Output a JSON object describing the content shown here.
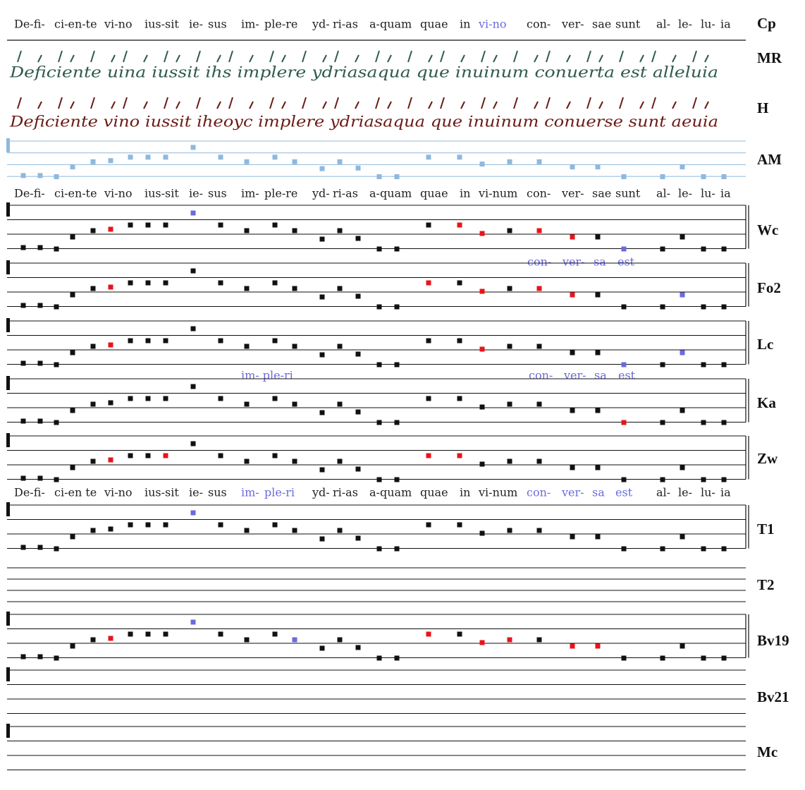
{
  "lyric_lines": [
    {
      "syllables": [
        {
          "text": "De-fi-"
        },
        {
          "text": "ci-en-te"
        },
        {
          "text": "vi-no"
        },
        {
          "text": "ius-sit"
        },
        {
          "text": "ie-"
        },
        {
          "text": "sus"
        },
        {
          "text": "im-"
        },
        {
          "text": "ple-re"
        },
        {
          "text": "yd-"
        },
        {
          "text": "ri-as"
        },
        {
          "text": "a-quam"
        },
        {
          "text": "quae"
        },
        {
          "text": "in"
        },
        {
          "text": "vi-no",
          "highlight": true
        },
        {
          "text": "con-"
        },
        {
          "text": "ver-"
        },
        {
          "text": "sae"
        },
        {
          "text": "sunt"
        },
        {
          "text": "al-"
        },
        {
          "text": "le-"
        },
        {
          "text": "lu-"
        },
        {
          "text": "ia"
        }
      ]
    },
    {
      "syllables": [
        {
          "text": "De-fi-"
        },
        {
          "text": "ci-en-te"
        },
        {
          "text": "vi-no"
        },
        {
          "text": "ius-sit"
        },
        {
          "text": "ie-"
        },
        {
          "text": "sus"
        },
        {
          "text": "im-"
        },
        {
          "text": "ple-re"
        },
        {
          "text": "yd-"
        },
        {
          "text": "ri-as"
        },
        {
          "text": "a-quam"
        },
        {
          "text": "quae"
        },
        {
          "text": "in"
        },
        {
          "text": "vi-num"
        },
        {
          "text": "con-"
        },
        {
          "text": "ver-"
        },
        {
          "text": "sae"
        },
        {
          "text": "sunt"
        },
        {
          "text": "al-"
        },
        {
          "text": "le-"
        },
        {
          "text": "lu-"
        },
        {
          "text": "ia"
        }
      ]
    },
    {
      "syllables": [
        {
          "text": "De-fi-"
        },
        {
          "text": "ci-en te"
        },
        {
          "text": "vi-no"
        },
        {
          "text": "ius-sit"
        },
        {
          "text": "ie-"
        },
        {
          "text": "sus"
        },
        {
          "text": "im-",
          "highlight": true
        },
        {
          "text": "ple-ri",
          "highlight": true
        },
        {
          "text": "yd-"
        },
        {
          "text": "ri-as"
        },
        {
          "text": "a-quam"
        },
        {
          "text": "quae"
        },
        {
          "text": "in"
        },
        {
          "text": "vi-num"
        },
        {
          "text": "con-",
          "highlight": true
        },
        {
          "text": "ver-",
          "highlight": true
        },
        {
          "text": "sa",
          "highlight": true
        },
        {
          "text": "est",
          "highlight": true
        },
        {
          "text": "al-"
        },
        {
          "text": "le-"
        },
        {
          "text": "lu-"
        },
        {
          "text": "ia"
        }
      ]
    }
  ],
  "sources": [
    {
      "siglum": "Cp"
    },
    {
      "siglum": "MR",
      "transcription": "Deficiente uina iussit ihs implere ydriasaqua que inuinum conuerta est alleluia"
    },
    {
      "siglum": "H",
      "transcription": "Deficiente vino iussit iheoyc implere ydriasaqua que inuinum conuerse sunt aeuia"
    },
    {
      "siglum": "AM"
    },
    {
      "siglum": "Wc",
      "variants": [
        "con-",
        "ver-",
        "sa",
        "est"
      ]
    },
    {
      "siglum": "Fo2"
    },
    {
      "siglum": "Lc",
      "variants": [
        "im- ple-ri",
        "con-",
        "ver-",
        "sa",
        "est"
      ]
    },
    {
      "siglum": "Ka"
    },
    {
      "siglum": "Zw"
    },
    {
      "siglum": "T1"
    },
    {
      "siglum": "T2"
    },
    {
      "siglum": "Bv19"
    },
    {
      "siglum": "Bv21"
    },
    {
      "siglum": "Mc"
    }
  ]
}
